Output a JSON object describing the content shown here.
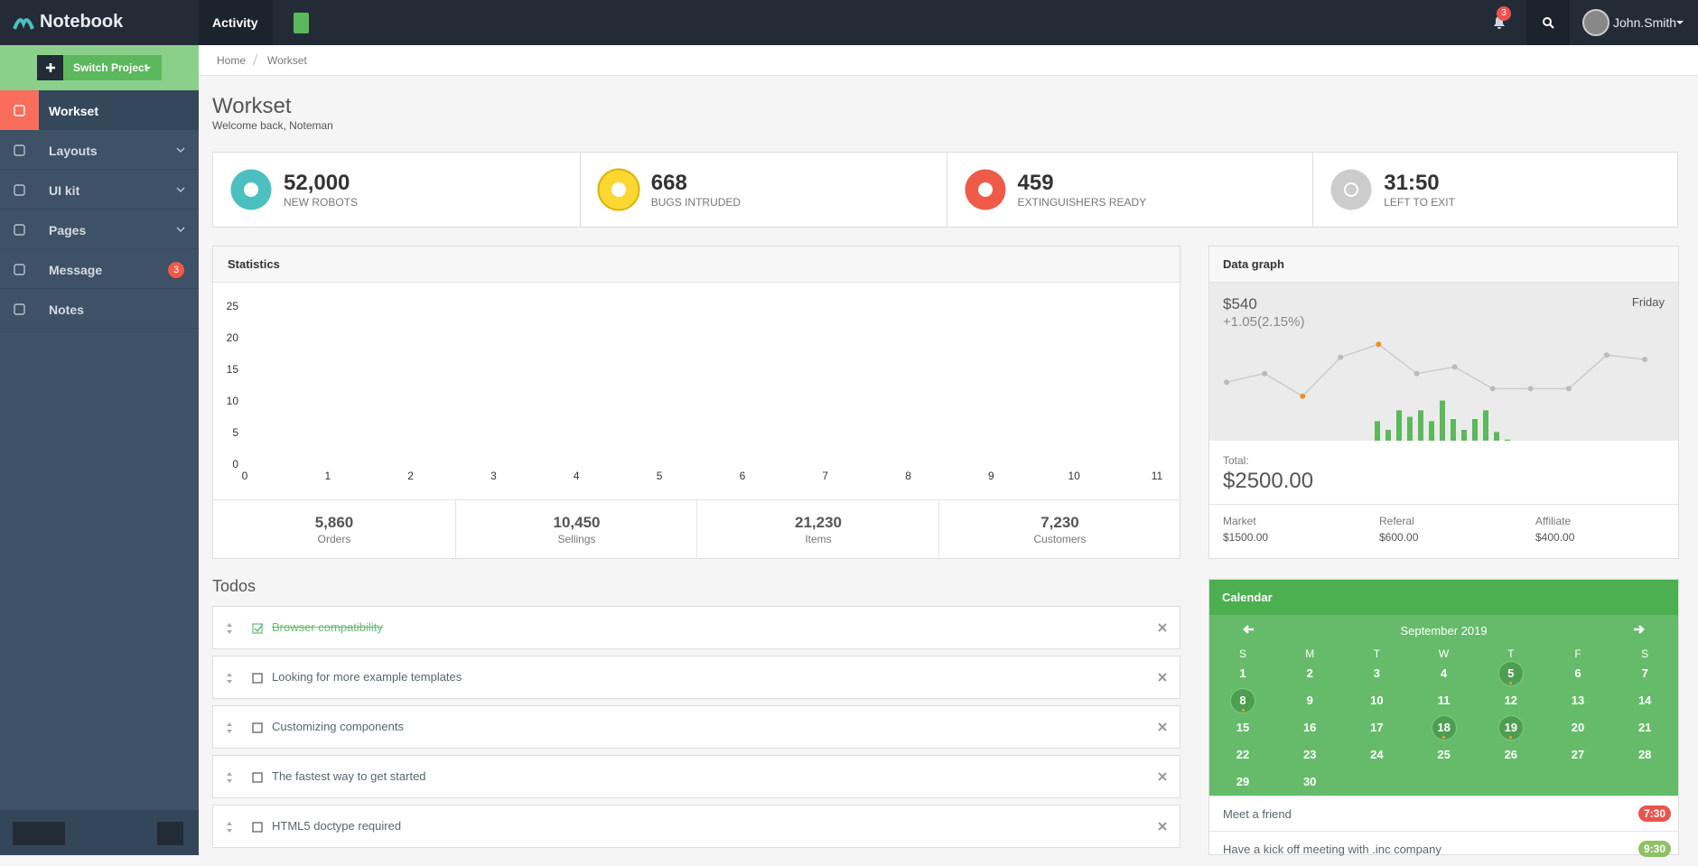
{
  "brand": "Notebook",
  "topbar": {
    "activity": "Activity",
    "notifications": "3",
    "user": "John.Smith"
  },
  "sidebar": {
    "switch": "Switch Project",
    "menu": [
      {
        "label": "Workset",
        "active": true
      },
      {
        "label": "Layouts"
      },
      {
        "label": "UI kit"
      },
      {
        "label": "Pages"
      },
      {
        "label": "Message",
        "badge": "3"
      },
      {
        "label": "Notes"
      }
    ]
  },
  "breadcrumb": [
    "Home",
    "Workset"
  ],
  "header": {
    "title": "Workset",
    "subtitle": "Welcome back, Noteman"
  },
  "stats": [
    {
      "value": "52,000",
      "label": "NEW ROBOTS",
      "color": "#4cc0c1"
    },
    {
      "value": "668",
      "label": "BUGS INTRUDED",
      "color": "#fad733"
    },
    {
      "value": "459",
      "label": "EXTINGUISHERS READY",
      "color": "#f05a48"
    },
    {
      "value": "31:50",
      "label": "LEFT TO EXIT",
      "color": "#cccccc"
    }
  ],
  "statistics": {
    "title": "Statistics",
    "chart_data": {
      "type": "line",
      "xlim": [
        0,
        11
      ],
      "ylim": [
        0,
        25
      ],
      "xticks": [
        0,
        1,
        2,
        3,
        4,
        5,
        6,
        7,
        8,
        9,
        10,
        11
      ],
      "yticks": [
        0,
        5,
        10,
        15,
        20,
        25
      ]
    },
    "summary": [
      {
        "value": "5,860",
        "label": "Orders"
      },
      {
        "value": "10,450",
        "label": "Sellings"
      },
      {
        "value": "21,230",
        "label": "Items"
      },
      {
        "value": "7,230",
        "label": "Customers"
      }
    ]
  },
  "todos": {
    "title": "Todos",
    "items": [
      {
        "text": "Browser compatibility",
        "done": true
      },
      {
        "text": "Looking for more example templates",
        "done": false
      },
      {
        "text": "Customizing components",
        "done": false
      },
      {
        "text": "The fastest way to get started",
        "done": false
      },
      {
        "text": "HTML5 doctype required",
        "done": false
      }
    ]
  },
  "data_graph": {
    "title": "Data graph",
    "price": "$540",
    "change": "+1.05(2.15%)",
    "day": "Friday",
    "chart_data": {
      "type": "line",
      "ylim": [
        0,
        100
      ],
      "series": [
        {
          "color": "#cccccc",
          "values": [
            54,
            62,
            41,
            77,
            89,
            62,
            68,
            48,
            48,
            48,
            79,
            75
          ]
        }
      ],
      "highlight": [
        2,
        4
      ],
      "highlight_color": "#f0901e",
      "bars": {
        "color": "#5cb85c",
        "values": [
          18,
          10,
          28,
          22,
          28,
          18,
          37,
          20,
          10,
          20,
          28,
          8,
          1
        ]
      }
    },
    "total_label": "Total:",
    "total": "$2500.00",
    "breakdown": [
      {
        "label": "Market",
        "value": "$1500.00"
      },
      {
        "label": "Referal",
        "value": "$600.00"
      },
      {
        "label": "Affiliate",
        "value": "$400.00"
      }
    ]
  },
  "calendar": {
    "title": "Calendar",
    "month": "September 2019",
    "weekdays": [
      "S",
      "M",
      "T",
      "W",
      "T",
      "F",
      "S"
    ],
    "days": [
      1,
      2,
      3,
      4,
      5,
      6,
      7,
      8,
      9,
      10,
      11,
      12,
      13,
      14,
      15,
      16,
      17,
      18,
      19,
      20,
      21,
      22,
      23,
      24,
      25,
      26,
      27,
      28,
      29,
      30
    ],
    "marked": [
      5,
      8,
      18,
      19
    ],
    "events": [
      {
        "text": "Meet a friend",
        "time": "7:30",
        "color": "#e8554e"
      },
      {
        "text": "Have a kick off meeting with .inc company",
        "time": "9:30",
        "color": "#8ec165"
      }
    ]
  }
}
